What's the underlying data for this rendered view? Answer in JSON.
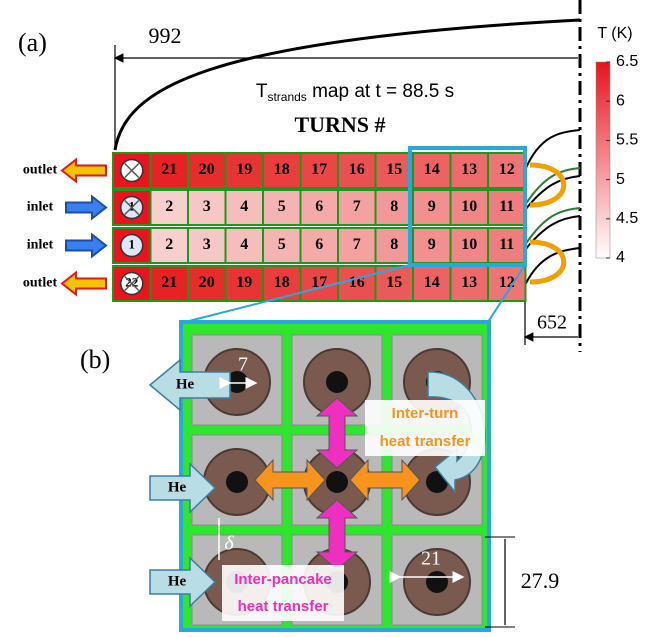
{
  "panel_a": {
    "label": "(a)",
    "dimension_top": "992",
    "dimension_right": "652",
    "map_title": {
      "main": "T",
      "sub": "strands",
      "rest": " map at t = 88.5 s"
    },
    "turns_heading": "TURNS #",
    "rows": [
      {
        "port": "outlet",
        "turns": [
          "21",
          "20",
          "19",
          "18",
          "17",
          "16",
          "15",
          "14",
          "13",
          "12"
        ]
      },
      {
        "port": "inlet",
        "start": "1",
        "turns": [
          "2",
          "3",
          "4",
          "5",
          "6",
          "7",
          "8",
          "9",
          "10",
          "11"
        ]
      },
      {
        "port": "inlet",
        "start": "1",
        "turns": [
          "2",
          "3",
          "4",
          "5",
          "6",
          "7",
          "8",
          "9",
          "10",
          "11"
        ]
      },
      {
        "port": "outlet",
        "start": "22",
        "turns": [
          "21",
          "20",
          "19",
          "18",
          "17",
          "16",
          "15",
          "14",
          "13",
          "12"
        ]
      }
    ]
  },
  "colorbar": {
    "title": "T (K)",
    "lim": [
      4,
      6.5
    ],
    "ticks": [
      6.5,
      6,
      5.5,
      5,
      4.5,
      4
    ]
  },
  "panel_b": {
    "label": "(b)",
    "gap_dimension": "7",
    "gap_symbol": "δ",
    "hole_dimension": "21",
    "cell_dimension": "27.9",
    "helium": [
      "He",
      "He",
      "He"
    ],
    "inter_turn": [
      "Inter-turn",
      "heat transfer"
    ],
    "inter_pancake": [
      "Inter-pancake",
      "heat transfer"
    ]
  }
}
